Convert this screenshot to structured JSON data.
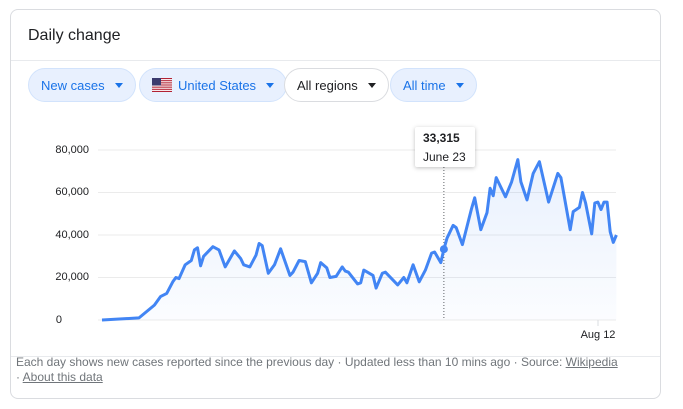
{
  "header": {
    "title": "Daily change"
  },
  "filters": [
    {
      "label": "New cases",
      "active": true
    },
    {
      "label": "United States",
      "active": true,
      "icon": "us-flag-icon"
    },
    {
      "label": "All regions",
      "active": false
    },
    {
      "label": "All time",
      "active": true
    }
  ],
  "tooltip": {
    "value": "33,315",
    "date": "June 23"
  },
  "footer": {
    "text": "Each day shows new cases reported since the previous day · Updated less than 10 mins ago  ·  Source: ",
    "source_link": "Wikipedia",
    "sep": " · ",
    "about_link": "About this data"
  },
  "chart_data": {
    "type": "area",
    "ylim": [
      0,
      80000
    ],
    "yticks": [
      "0",
      "20,000",
      "40,000",
      "60,000",
      "80,000"
    ],
    "xtick_labels": [
      "Aug 12"
    ],
    "grid": true,
    "line_color": "#4285f4",
    "highlight": {
      "date": "Jun 23",
      "value": 33315
    },
    "points": [
      [
        "Mar 4",
        0
      ],
      [
        "Mar 16",
        1000
      ],
      [
        "Mar 21",
        7000
      ],
      [
        "Mar 23",
        11000
      ],
      [
        "Mar 25",
        12500
      ],
      [
        "Mar 27",
        18000
      ],
      [
        "Mar 28",
        20000
      ],
      [
        "Mar 29",
        19500
      ],
      [
        "Mar 31",
        26000
      ],
      [
        "Apr 2",
        28000
      ],
      [
        "Apr 3",
        33000
      ],
      [
        "Apr 4",
        34000
      ],
      [
        "Apr 5",
        25500
      ],
      [
        "Apr 6",
        30000
      ],
      [
        "Apr 9",
        34500
      ],
      [
        "Apr 11",
        33000
      ],
      [
        "Apr 13",
        25000
      ],
      [
        "Apr 16",
        32500
      ],
      [
        "Apr 18",
        29000
      ],
      [
        "Apr 19",
        26000
      ],
      [
        "Apr 21",
        25000
      ],
      [
        "Apr 23",
        30500
      ],
      [
        "Apr 24",
        36000
      ],
      [
        "Apr 25",
        35000
      ],
      [
        "Apr 27",
        22000
      ],
      [
        "Apr 29",
        26000
      ],
      [
        "May 1",
        33500
      ],
      [
        "May 4",
        21000
      ],
      [
        "May 5",
        22500
      ],
      [
        "May 7",
        28000
      ],
      [
        "May 9",
        27500
      ],
      [
        "May 11",
        17500
      ],
      [
        "May 13",
        22000
      ],
      [
        "May 14",
        27000
      ],
      [
        "May 16",
        24500
      ],
      [
        "May 17",
        20000
      ],
      [
        "May 19",
        20500
      ],
      [
        "May 21",
        25000
      ],
      [
        "May 22",
        23000
      ],
      [
        "May 23",
        22500
      ],
      [
        "May 26",
        17000
      ],
      [
        "May 27",
        17500
      ],
      [
        "May 28",
        23500
      ],
      [
        "May 31",
        21000
      ],
      [
        "Jun 1",
        15000
      ],
      [
        "Jun 3",
        22000
      ],
      [
        "Jun 4",
        22500
      ],
      [
        "Jun 8",
        16500
      ],
      [
        "Jun 10",
        20000
      ],
      [
        "Jun 11",
        17500
      ],
      [
        "Jun 13",
        26000
      ],
      [
        "Jun 15",
        18000
      ],
      [
        "Jun 17",
        23500
      ],
      [
        "Jun 19",
        31500
      ],
      [
        "Jun 20",
        32000
      ],
      [
        "Jun 22",
        27000
      ],
      [
        "Jun 23",
        33315
      ],
      [
        "Jun 24",
        38500
      ],
      [
        "Jun 26",
        44500
      ],
      [
        "Jun 27",
        43500
      ],
      [
        "Jun 29",
        35500
      ],
      [
        "Jul 2",
        52500
      ],
      [
        "Jul 3",
        57500
      ],
      [
        "Jul 5",
        42500
      ],
      [
        "Jul 7",
        50500
      ],
      [
        "Jul 8",
        62000
      ],
      [
        "Jul 9",
        58500
      ],
      [
        "Jul 10",
        67000
      ],
      [
        "Jul 11",
        64000
      ],
      [
        "Jul 13",
        58000
      ],
      [
        "Jul 15",
        65000
      ],
      [
        "Jul 17",
        75500
      ],
      [
        "Jul 18",
        65000
      ],
      [
        "Jul 20",
        56500
      ],
      [
        "Jul 22",
        69000
      ],
      [
        "Jul 24",
        74500
      ],
      [
        "Jul 27",
        55500
      ],
      [
        "Jul 30",
        69000
      ],
      [
        "Jul 31",
        67000
      ],
      [
        "Aug 3",
        42500
      ],
      [
        "Aug 4",
        51000
      ],
      [
        "Aug 6",
        53000
      ],
      [
        "Aug 7",
        60000
      ],
      [
        "Aug 8",
        55000
      ],
      [
        "Aug 10",
        40500
      ],
      [
        "Aug 11",
        55000
      ],
      [
        "Aug 12",
        55500
      ],
      [
        "Aug 13",
        52000
      ],
      [
        "Aug 14",
        55500
      ],
      [
        "Aug 15",
        55500
      ],
      [
        "Aug 16",
        41500
      ],
      [
        "Aug 17",
        36500
      ],
      [
        "Aug 18",
        40000
      ]
    ]
  }
}
